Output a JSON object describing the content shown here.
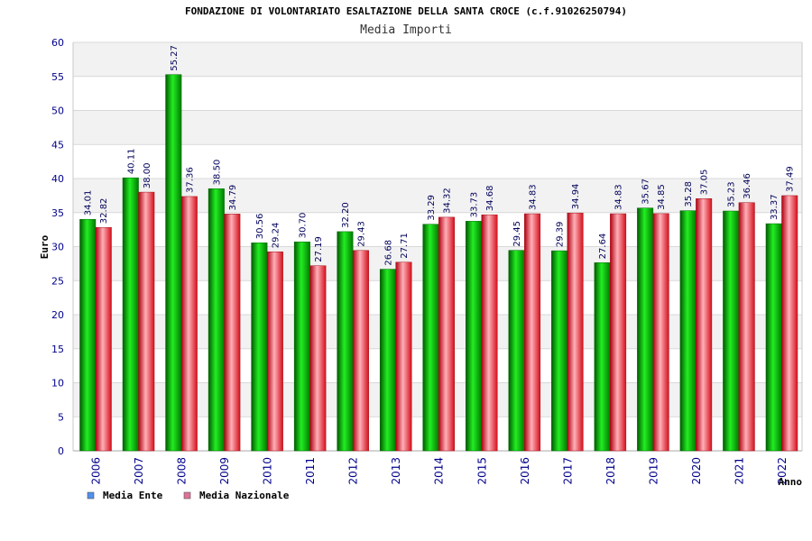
{
  "chart_data": {
    "type": "bar",
    "title": "FONDAZIONE DI VOLONTARIATO ESALTAZIONE DELLA SANTA CROCE (c.f.91026250794)",
    "subtitle": "Media Importi",
    "xlabel": "Anno",
    "ylabel": "Euro",
    "ylim": [
      0,
      60
    ],
    "ytick_step": 5,
    "grid": true,
    "legend_position": "bottom-left",
    "categories": [
      "2006",
      "2007",
      "2008",
      "2009",
      "2010",
      "2011",
      "2012",
      "2013",
      "2014",
      "2015",
      "2016",
      "2017",
      "2018",
      "2019",
      "2020",
      "2021",
      "2022"
    ],
    "series": [
      {
        "name": "Media Ente",
        "color": "#00b000",
        "legend_color": "#4f8ff0",
        "values": [
          34.01,
          40.11,
          55.27,
          38.5,
          30.56,
          30.7,
          32.2,
          26.68,
          33.29,
          33.73,
          29.45,
          29.39,
          27.64,
          35.67,
          35.28,
          35.23,
          33.37
        ],
        "labels": [
          "34.01",
          "40.11",
          "55.27",
          "38.50",
          "30.56",
          "30.70",
          "32.20",
          "26.68",
          "33.29",
          "33.73",
          "29.45",
          "29.39",
          "27.64",
          "35.67",
          "35.28",
          "35.23",
          "33.37"
        ]
      },
      {
        "name": "Media Nazionale",
        "color": "#e8202c",
        "legend_color": "#e0709a",
        "values": [
          32.82,
          38.0,
          37.36,
          34.79,
          29.24,
          27.19,
          29.43,
          27.71,
          34.32,
          34.68,
          34.83,
          34.94,
          34.83,
          34.85,
          37.05,
          36.46,
          37.49
        ],
        "labels": [
          "32.82",
          "38.00",
          "37.36",
          "34.79",
          "29.24",
          "27.19",
          "29.43",
          "27.71",
          "34.32",
          "34.68",
          "34.83",
          "34.94",
          "34.83",
          "34.85",
          "37.05",
          "36.46",
          "37.49"
        ]
      }
    ]
  }
}
